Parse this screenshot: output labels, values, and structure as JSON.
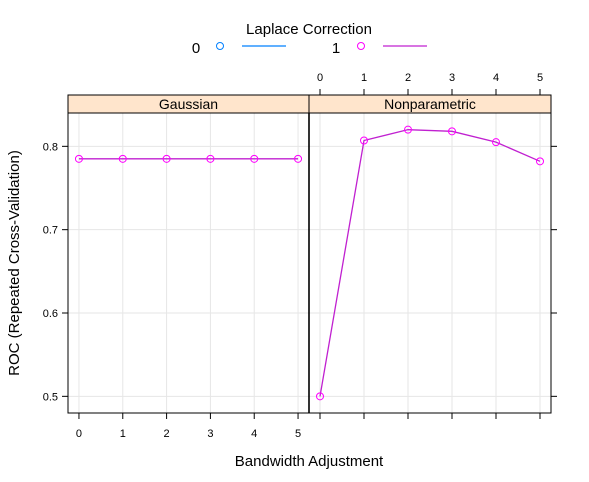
{
  "chart_data": {
    "type": "line",
    "legend": {
      "title": "Laplace Correction",
      "placement": "top",
      "entries": [
        "0",
        "1"
      ]
    },
    "colors": {
      "series_0": "#0080ff",
      "series_1": "#ff00ff",
      "series_1_line": "#c020d0",
      "strip": "#ffe5cc",
      "grid": "#e6e6e6"
    },
    "xlabel": "Bandwidth Adjustment",
    "ylabel": "ROC (Repeated Cross-Validation)",
    "x_ticks": [
      "0",
      "1",
      "2",
      "3",
      "4",
      "5"
    ],
    "y_ticks": [
      "0.5",
      "0.6",
      "0.7",
      "0.8"
    ],
    "xlim": [
      -0.25,
      5.25
    ],
    "ylim": [
      0.48,
      0.84
    ],
    "grid": true,
    "panels": [
      {
        "name": "Gaussian",
        "series": [
          {
            "name": "1",
            "x": [
              0,
              1,
              2,
              3,
              4,
              5
            ],
            "y": [
              0.785,
              0.785,
              0.785,
              0.785,
              0.785,
              0.785
            ]
          }
        ]
      },
      {
        "name": "Nonparametric",
        "series": [
          {
            "name": "1",
            "x": [
              0,
              1,
              2,
              3,
              4,
              5
            ],
            "y": [
              0.5,
              0.807,
              0.82,
              0.818,
              0.805,
              0.782
            ]
          }
        ]
      }
    ]
  }
}
